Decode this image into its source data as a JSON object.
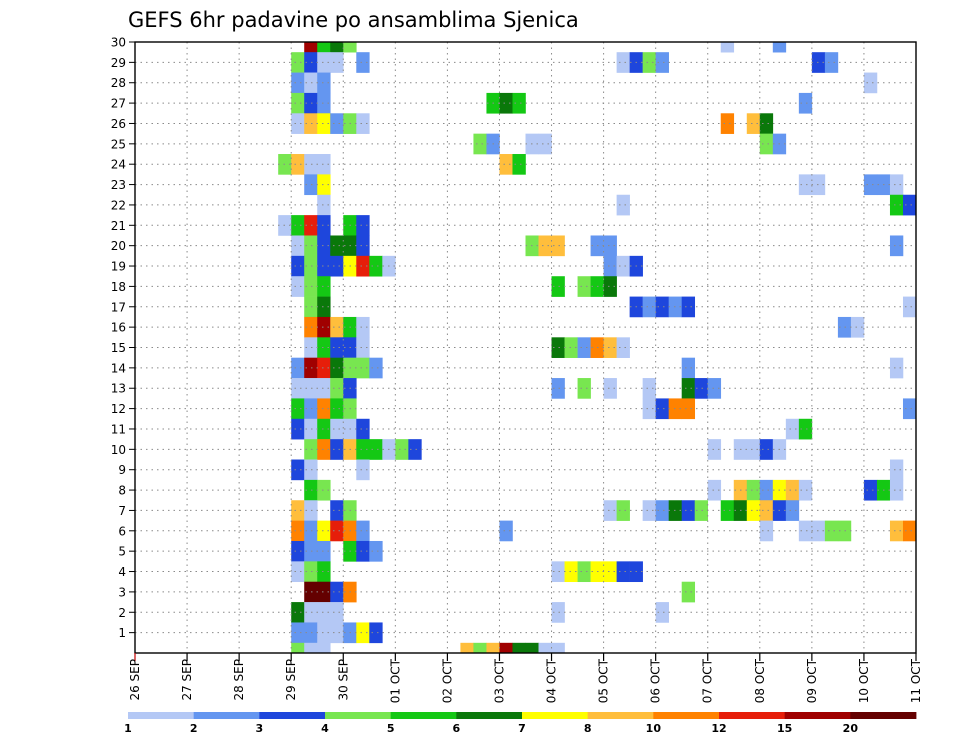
{
  "chart_data": {
    "type": "heatmap",
    "title": "GEFS 6hr padavine po ansamblima Sjenica",
    "xlabel": "",
    "ylabel": "",
    "x_tick_labels": [
      "26 SEP",
      "27 SEP",
      "28 SEP",
      "29 SEP",
      "30 SEP",
      "01 OCT",
      "02 OCT",
      "03 OCT",
      "04 OCT",
      "05 OCT",
      "06 OCT",
      "07 OCT",
      "08 OCT",
      "09 OCT",
      "10 OCT",
      "11 OCT"
    ],
    "y_tick_labels": [
      "1",
      "2",
      "3",
      "4",
      "5",
      "6",
      "7",
      "8",
      "9",
      "10",
      "11",
      "12",
      "13",
      "14",
      "15",
      "16",
      "17",
      "18",
      "19",
      "20",
      "21",
      "22",
      "23",
      "24",
      "25",
      "26",
      "27",
      "28",
      "29",
      "30"
    ],
    "x_unit": "6-hour step from 26 SEP 00Z",
    "xlim": [
      0,
      60
    ],
    "ylim": [
      0,
      30
    ],
    "grid": true,
    "colorbar": {
      "labels": [
        "1",
        "2",
        "3",
        "4",
        "5",
        "6",
        "7",
        "8",
        "10",
        "12",
        "15",
        "20"
      ],
      "colors": [
        "#b4c8f5",
        "#6496f0",
        "#1e46dc",
        "#78e650",
        "#14c814",
        "#0a780a",
        "#ffff00",
        "#ffbe3c",
        "#ff8200",
        "#e61e0a",
        "#a00000",
        "#640000"
      ]
    },
    "cells": [
      [
        30,
        13,
        "#a00000"
      ],
      [
        30,
        14,
        "#14c814"
      ],
      [
        30,
        15,
        "#0a780a"
      ],
      [
        30,
        16,
        "#78e650"
      ],
      [
        30,
        45,
        "#b4c8f5"
      ],
      [
        30,
        49,
        "#6496f0"
      ],
      [
        29,
        12,
        "#78e650"
      ],
      [
        29,
        13,
        "#1e46dc"
      ],
      [
        29,
        14,
        "#b4c8f5"
      ],
      [
        29,
        15,
        "#b4c8f5"
      ],
      [
        29,
        17,
        "#6496f0"
      ],
      [
        29,
        37,
        "#b4c8f5"
      ],
      [
        29,
        38,
        "#1e46dc"
      ],
      [
        29,
        39,
        "#78e650"
      ],
      [
        29,
        40,
        "#6496f0"
      ],
      [
        29,
        52,
        "#1e46dc"
      ],
      [
        29,
        53,
        "#6496f0"
      ],
      [
        28,
        12,
        "#6496f0"
      ],
      [
        28,
        13,
        "#b4c8f5"
      ],
      [
        28,
        14,
        "#6496f0"
      ],
      [
        28,
        56,
        "#b4c8f5"
      ],
      [
        27,
        12,
        "#78e650"
      ],
      [
        27,
        13,
        "#1e46dc"
      ],
      [
        27,
        14,
        "#6496f0"
      ],
      [
        27,
        27,
        "#14c814"
      ],
      [
        27,
        28,
        "#0a780a"
      ],
      [
        27,
        29,
        "#14c814"
      ],
      [
        27,
        51,
        "#6496f0"
      ],
      [
        26,
        12,
        "#b4c8f5"
      ],
      [
        26,
        13,
        "#ffbe3c"
      ],
      [
        26,
        14,
        "#ffff00"
      ],
      [
        26,
        15,
        "#6496f0"
      ],
      [
        26,
        16,
        "#78e650"
      ],
      [
        26,
        17,
        "#b4c8f5"
      ],
      [
        26,
        45,
        "#ff8200"
      ],
      [
        26,
        47,
        "#ffbe3c"
      ],
      [
        26,
        48,
        "#0a780a"
      ],
      [
        25,
        26,
        "#78e650"
      ],
      [
        25,
        27,
        "#6496f0"
      ],
      [
        25,
        30,
        "#b4c8f5"
      ],
      [
        25,
        31,
        "#b4c8f5"
      ],
      [
        25,
        48,
        "#78e650"
      ],
      [
        25,
        49,
        "#6496f0"
      ],
      [
        24,
        11,
        "#78e650"
      ],
      [
        24,
        12,
        "#ffbe3c"
      ],
      [
        24,
        13,
        "#b4c8f5"
      ],
      [
        24,
        14,
        "#b4c8f5"
      ],
      [
        24,
        28,
        "#ffbe3c"
      ],
      [
        24,
        29,
        "#14c814"
      ],
      [
        23,
        13,
        "#6496f0"
      ],
      [
        23,
        14,
        "#ffff00"
      ],
      [
        23,
        51,
        "#b4c8f5"
      ],
      [
        23,
        52,
        "#b4c8f5"
      ],
      [
        23,
        56,
        "#6496f0"
      ],
      [
        23,
        57,
        "#6496f0"
      ],
      [
        23,
        58,
        "#b4c8f5"
      ],
      [
        22,
        14,
        "#b4c8f5"
      ],
      [
        22,
        37,
        "#b4c8f5"
      ],
      [
        22,
        58,
        "#14c814"
      ],
      [
        22,
        59,
        "#1e46dc"
      ],
      [
        21,
        11,
        "#b4c8f5"
      ],
      [
        21,
        12,
        "#14c814"
      ],
      [
        21,
        13,
        "#e61e0a"
      ],
      [
        21,
        14,
        "#1e46dc"
      ],
      [
        21,
        16,
        "#14c814"
      ],
      [
        21,
        17,
        "#1e46dc"
      ],
      [
        20,
        12,
        "#b4c8f5"
      ],
      [
        20,
        13,
        "#78e650"
      ],
      [
        20,
        14,
        "#1e46dc"
      ],
      [
        20,
        15,
        "#0a780a"
      ],
      [
        20,
        16,
        "#0a780a"
      ],
      [
        20,
        17,
        "#1e46dc"
      ],
      [
        20,
        30,
        "#78e650"
      ],
      [
        20,
        31,
        "#ffbe3c"
      ],
      [
        20,
        32,
        "#ffbe3c"
      ],
      [
        20,
        35,
        "#6496f0"
      ],
      [
        20,
        36,
        "#6496f0"
      ],
      [
        20,
        58,
        "#6496f0"
      ],
      [
        19,
        12,
        "#1e46dc"
      ],
      [
        19,
        13,
        "#78e650"
      ],
      [
        19,
        14,
        "#1e46dc"
      ],
      [
        19,
        15,
        "#1e46dc"
      ],
      [
        19,
        16,
        "#ffff00"
      ],
      [
        19,
        17,
        "#e61e0a"
      ],
      [
        19,
        18,
        "#14c814"
      ],
      [
        19,
        19,
        "#b4c8f5"
      ],
      [
        19,
        36,
        "#6496f0"
      ],
      [
        19,
        37,
        "#b4c8f5"
      ],
      [
        19,
        38,
        "#1e46dc"
      ],
      [
        18,
        12,
        "#b4c8f5"
      ],
      [
        18,
        13,
        "#78e650"
      ],
      [
        18,
        14,
        "#14c814"
      ],
      [
        18,
        32,
        "#14c814"
      ],
      [
        18,
        34,
        "#78e650"
      ],
      [
        18,
        35,
        "#14c814"
      ],
      [
        18,
        36,
        "#0a780a"
      ],
      [
        17,
        13,
        "#78e650"
      ],
      [
        17,
        14,
        "#0a780a"
      ],
      [
        17,
        38,
        "#1e46dc"
      ],
      [
        17,
        39,
        "#6496f0"
      ],
      [
        17,
        40,
        "#1e46dc"
      ],
      [
        17,
        41,
        "#6496f0"
      ],
      [
        17,
        42,
        "#1e46dc"
      ],
      [
        17,
        59,
        "#b4c8f5"
      ],
      [
        16,
        13,
        "#ff8200"
      ],
      [
        16,
        14,
        "#a00000"
      ],
      [
        16,
        15,
        "#ffbe3c"
      ],
      [
        16,
        16,
        "#14c814"
      ],
      [
        16,
        17,
        "#b4c8f5"
      ],
      [
        16,
        54,
        "#6496f0"
      ],
      [
        16,
        55,
        "#b4c8f5"
      ],
      [
        15,
        13,
        "#b4c8f5"
      ],
      [
        15,
        14,
        "#14c814"
      ],
      [
        15,
        15,
        "#1e46dc"
      ],
      [
        15,
        16,
        "#1e46dc"
      ],
      [
        15,
        17,
        "#b4c8f5"
      ],
      [
        15,
        32,
        "#0a780a"
      ],
      [
        15,
        33,
        "#78e650"
      ],
      [
        15,
        34,
        "#6496f0"
      ],
      [
        15,
        35,
        "#ff8200"
      ],
      [
        15,
        36,
        "#ffbe3c"
      ],
      [
        15,
        37,
        "#b4c8f5"
      ],
      [
        14,
        12,
        "#6496f0"
      ],
      [
        14,
        13,
        "#a00000"
      ],
      [
        14,
        14,
        "#e61e0a"
      ],
      [
        14,
        15,
        "#0a780a"
      ],
      [
        14,
        16,
        "#78e650"
      ],
      [
        14,
        17,
        "#78e650"
      ],
      [
        14,
        18,
        "#6496f0"
      ],
      [
        14,
        42,
        "#6496f0"
      ],
      [
        14,
        58,
        "#b4c8f5"
      ],
      [
        13,
        12,
        "#b4c8f5"
      ],
      [
        13,
        13,
        "#b4c8f5"
      ],
      [
        13,
        14,
        "#b4c8f5"
      ],
      [
        13,
        15,
        "#78e650"
      ],
      [
        13,
        16,
        "#1e46dc"
      ],
      [
        13,
        32,
        "#6496f0"
      ],
      [
        13,
        34,
        "#78e650"
      ],
      [
        13,
        36,
        "#b4c8f5"
      ],
      [
        13,
        39,
        "#b4c8f5"
      ],
      [
        13,
        42,
        "#0a780a"
      ],
      [
        13,
        43,
        "#1e46dc"
      ],
      [
        13,
        44,
        "#6496f0"
      ],
      [
        12,
        12,
        "#14c814"
      ],
      [
        12,
        13,
        "#6496f0"
      ],
      [
        12,
        14,
        "#ff8200"
      ],
      [
        12,
        15,
        "#14c814"
      ],
      [
        12,
        16,
        "#78e650"
      ],
      [
        12,
        39,
        "#b4c8f5"
      ],
      [
        12,
        40,
        "#1e46dc"
      ],
      [
        12,
        41,
        "#ff8200"
      ],
      [
        12,
        42,
        "#ff8200"
      ],
      [
        12,
        59,
        "#6496f0"
      ],
      [
        11,
        12,
        "#1e46dc"
      ],
      [
        11,
        13,
        "#b4c8f5"
      ],
      [
        11,
        14,
        "#14c814"
      ],
      [
        11,
        15,
        "#b4c8f5"
      ],
      [
        11,
        16,
        "#b4c8f5"
      ],
      [
        11,
        17,
        "#1e46dc"
      ],
      [
        11,
        50,
        "#b4c8f5"
      ],
      [
        11,
        51,
        "#14c814"
      ],
      [
        10,
        13,
        "#78e650"
      ],
      [
        10,
        14,
        "#ff8200"
      ],
      [
        10,
        15,
        "#1e46dc"
      ],
      [
        10,
        16,
        "#ffbe3c"
      ],
      [
        10,
        17,
        "#14c814"
      ],
      [
        10,
        18,
        "#14c814"
      ],
      [
        10,
        19,
        "#b4c8f5"
      ],
      [
        10,
        20,
        "#78e650"
      ],
      [
        10,
        21,
        "#1e46dc"
      ],
      [
        10,
        44,
        "#b4c8f5"
      ],
      [
        10,
        46,
        "#b4c8f5"
      ],
      [
        10,
        47,
        "#b4c8f5"
      ],
      [
        10,
        48,
        "#1e46dc"
      ],
      [
        10,
        49,
        "#b4c8f5"
      ],
      [
        9,
        12,
        "#1e46dc"
      ],
      [
        9,
        13,
        "#b4c8f5"
      ],
      [
        9,
        17,
        "#b4c8f5"
      ],
      [
        9,
        58,
        "#b4c8f5"
      ],
      [
        8,
        13,
        "#14c814"
      ],
      [
        8,
        14,
        "#78e650"
      ],
      [
        8,
        44,
        "#b4c8f5"
      ],
      [
        8,
        46,
        "#ffbe3c"
      ],
      [
        8,
        47,
        "#78e650"
      ],
      [
        8,
        48,
        "#6496f0"
      ],
      [
        8,
        49,
        "#ffff00"
      ],
      [
        8,
        50,
        "#ffbe3c"
      ],
      [
        8,
        51,
        "#b4c8f5"
      ],
      [
        8,
        56,
        "#1e46dc"
      ],
      [
        8,
        57,
        "#14c814"
      ],
      [
        8,
        58,
        "#b4c8f5"
      ],
      [
        7,
        12,
        "#ffbe3c"
      ],
      [
        7,
        13,
        "#b4c8f5"
      ],
      [
        7,
        15,
        "#1e46dc"
      ],
      [
        7,
        16,
        "#78e650"
      ],
      [
        7,
        36,
        "#b4c8f5"
      ],
      [
        7,
        37,
        "#78e650"
      ],
      [
        7,
        39,
        "#b4c8f5"
      ],
      [
        7,
        40,
        "#6496f0"
      ],
      [
        7,
        41,
        "#0a780a"
      ],
      [
        7,
        42,
        "#1e46dc"
      ],
      [
        7,
        43,
        "#78e650"
      ],
      [
        7,
        45,
        "#14c814"
      ],
      [
        7,
        46,
        "#0a780a"
      ],
      [
        7,
        47,
        "#ffff00"
      ],
      [
        7,
        48,
        "#ffbe3c"
      ],
      [
        7,
        49,
        "#1e46dc"
      ],
      [
        7,
        50,
        "#6496f0"
      ],
      [
        6,
        12,
        "#ff8200"
      ],
      [
        6,
        13,
        "#6496f0"
      ],
      [
        6,
        14,
        "#ffff00"
      ],
      [
        6,
        15,
        "#e61e0a"
      ],
      [
        6,
        16,
        "#ff8200"
      ],
      [
        6,
        17,
        "#6496f0"
      ],
      [
        6,
        28,
        "#6496f0"
      ],
      [
        6,
        48,
        "#b4c8f5"
      ],
      [
        6,
        51,
        "#b4c8f5"
      ],
      [
        6,
        52,
        "#b4c8f5"
      ],
      [
        6,
        53,
        "#78e650"
      ],
      [
        6,
        54,
        "#78e650"
      ],
      [
        6,
        58,
        "#ffbe3c"
      ],
      [
        6,
        59,
        "#ff8200"
      ],
      [
        5,
        12,
        "#1e46dc"
      ],
      [
        5,
        13,
        "#6496f0"
      ],
      [
        5,
        14,
        "#6496f0"
      ],
      [
        5,
        16,
        "#14c814"
      ],
      [
        5,
        17,
        "#1e46dc"
      ],
      [
        5,
        18,
        "#6496f0"
      ],
      [
        4,
        12,
        "#b4c8f5"
      ],
      [
        4,
        13,
        "#78e650"
      ],
      [
        4,
        14,
        "#14c814"
      ],
      [
        4,
        32,
        "#b4c8f5"
      ],
      [
        4,
        33,
        "#ffff00"
      ],
      [
        4,
        34,
        "#78e650"
      ],
      [
        4,
        35,
        "#ffff00"
      ],
      [
        4,
        36,
        "#ffff00"
      ],
      [
        4,
        37,
        "#1e46dc"
      ],
      [
        4,
        38,
        "#1e46dc"
      ],
      [
        3,
        13,
        "#640000"
      ],
      [
        3,
        14,
        "#640000"
      ],
      [
        3,
        15,
        "#1e46dc"
      ],
      [
        3,
        16,
        "#ff8200"
      ],
      [
        3,
        42,
        "#78e650"
      ],
      [
        2,
        12,
        "#0a780a"
      ],
      [
        2,
        13,
        "#b4c8f5"
      ],
      [
        2,
        14,
        "#b4c8f5"
      ],
      [
        2,
        15,
        "#b4c8f5"
      ],
      [
        2,
        32,
        "#b4c8f5"
      ],
      [
        2,
        40,
        "#b4c8f5"
      ],
      [
        1,
        12,
        "#6496f0"
      ],
      [
        1,
        13,
        "#6496f0"
      ],
      [
        1,
        14,
        "#b4c8f5"
      ],
      [
        1,
        15,
        "#b4c8f5"
      ],
      [
        1,
        16,
        "#6496f0"
      ],
      [
        1,
        17,
        "#ffff00"
      ],
      [
        1,
        18,
        "#1e46dc"
      ],
      [
        0,
        12,
        "#78e650"
      ],
      [
        0,
        13,
        "#b4c8f5"
      ],
      [
        0,
        14,
        "#b4c8f5"
      ],
      [
        0,
        25,
        "#ffbe3c"
      ],
      [
        0,
        26,
        "#78e650"
      ],
      [
        0,
        27,
        "#ffbe3c"
      ],
      [
        0,
        28,
        "#a00000"
      ],
      [
        0,
        29,
        "#0a780a"
      ],
      [
        0,
        30,
        "#0a780a"
      ],
      [
        0,
        31,
        "#b4c8f5"
      ],
      [
        0,
        32,
        "#b4c8f5"
      ]
    ]
  }
}
